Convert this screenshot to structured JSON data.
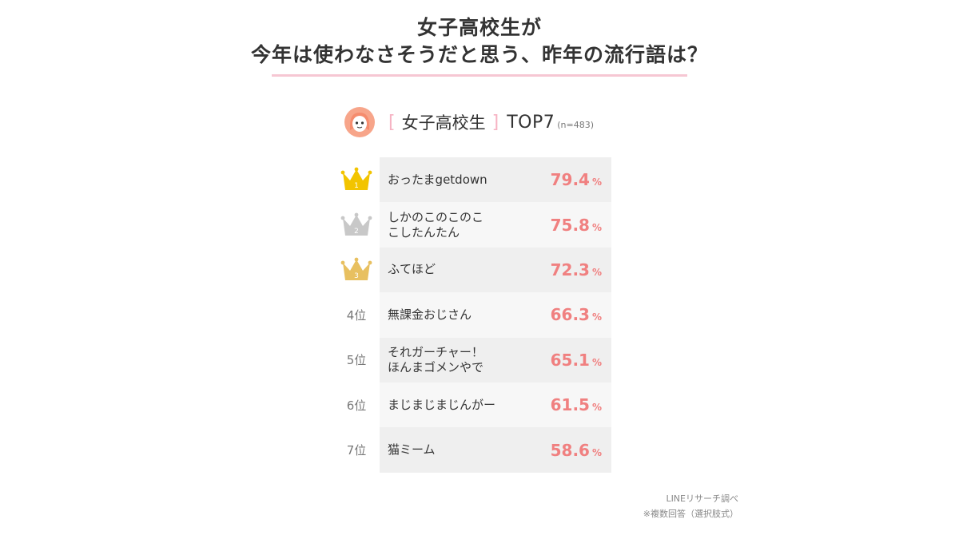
{
  "title": {
    "line1": "女子高校生が",
    "line2": "今年は使わなさそうだと思う、昨年の流行語は？"
  },
  "header": {
    "segment": "女子高校生",
    "bracket_open": "[",
    "bracket_close": "]",
    "top_label": "TOP7",
    "n_label": "(n=483)"
  },
  "rank_labels": [
    "1",
    "2",
    "3",
    "4位",
    "5位",
    "6位",
    "7位"
  ],
  "colors": {
    "gold": "#f2c400",
    "silver": "#c8c8c8",
    "bronze": "#e8c060",
    "value": "#f08080",
    "underline": "#f6c7d3"
  },
  "chart_data": {
    "type": "table",
    "title": "女子高校生が今年は使わなさそうだと思う、昨年の流行語は？",
    "unit": "%",
    "rows": [
      {
        "rank": 1,
        "label_lines": [
          "おったまgetdown"
        ],
        "value": "79.4"
      },
      {
        "rank": 2,
        "label_lines": [
          "しかのこのこのこ",
          "こしたんたん"
        ],
        "value": "75.8"
      },
      {
        "rank": 3,
        "label_lines": [
          "ふてほど"
        ],
        "value": "72.3"
      },
      {
        "rank": 4,
        "label_lines": [
          "無課金おじさん"
        ],
        "value": "66.3"
      },
      {
        "rank": 5,
        "label_lines": [
          "それガーチャー！",
          "ほんまゴメンやで"
        ],
        "value": "65.1"
      },
      {
        "rank": 6,
        "label_lines": [
          "まじまじまじんがー"
        ],
        "value": "61.5"
      },
      {
        "rank": 7,
        "label_lines": [
          "猫ミーム"
        ],
        "value": "58.6"
      }
    ]
  },
  "footer": {
    "source": "LINEリサーチ調べ",
    "note": "※複数回答（選択肢式）"
  }
}
